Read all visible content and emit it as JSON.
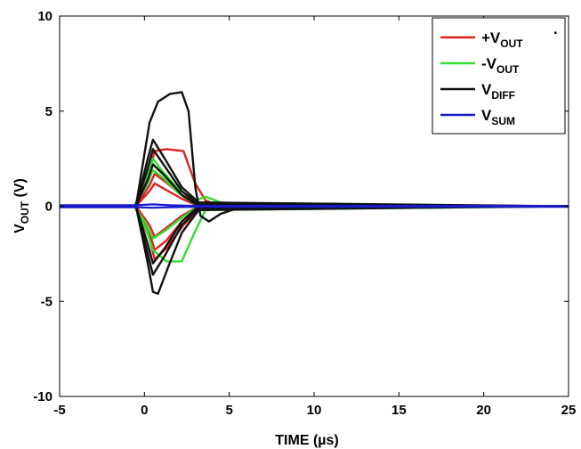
{
  "chart_data": {
    "type": "line",
    "xlabel": "TIME (µs)",
    "ylabel_main": "V",
    "ylabel_sub": "OUT",
    "ylabel_tail": " (V)",
    "xlim": [
      -5,
      25
    ],
    "ylim": [
      -10,
      10
    ],
    "x_ticks": [
      -5,
      0,
      5,
      10,
      15,
      20,
      25
    ],
    "y_ticks": [
      -10,
      -5,
      0,
      5,
      10
    ],
    "grid": false,
    "legend_position": "top-right",
    "series": [
      {
        "name": "+VOUT",
        "label_main": "+V",
        "label_sub": "OUT",
        "color": "#dd2222",
        "traces": [
          [
            [
              -5,
              0
            ],
            [
              -0.5,
              0
            ],
            [
              0.2,
              1.5
            ],
            [
              0.6,
              2.9
            ],
            [
              1.3,
              3.0
            ],
            [
              2.3,
              2.9
            ],
            [
              3.0,
              1.2
            ],
            [
              3.6,
              0.3
            ],
            [
              4.5,
              0
            ],
            [
              25,
              0
            ]
          ],
          [
            [
              -5,
              0
            ],
            [
              -0.5,
              0
            ],
            [
              0.3,
              1.1
            ],
            [
              0.6,
              1.7
            ],
            [
              1.2,
              1.3
            ],
            [
              2.2,
              0.6
            ],
            [
              3.2,
              0.1
            ],
            [
              25,
              0
            ]
          ],
          [
            [
              -5,
              0
            ],
            [
              -0.5,
              0
            ],
            [
              0.3,
              0.8
            ],
            [
              0.6,
              1.2
            ],
            [
              1.2,
              0.9
            ],
            [
              2.2,
              0.4
            ],
            [
              3.2,
              0
            ],
            [
              25,
              0
            ]
          ],
          [
            [
              -5,
              0
            ],
            [
              -0.5,
              0
            ],
            [
              0.3,
              -1.0
            ],
            [
              0.6,
              -1.6
            ],
            [
              1.2,
              -1.2
            ],
            [
              2.2,
              -0.5
            ],
            [
              3.2,
              0
            ],
            [
              25,
              0
            ]
          ],
          [
            [
              -5,
              0
            ],
            [
              -0.5,
              0
            ],
            [
              0.3,
              -1.4
            ],
            [
              0.6,
              -2.3
            ],
            [
              1.3,
              -1.8
            ],
            [
              2.2,
              -0.8
            ],
            [
              3.2,
              0
            ],
            [
              25,
              0
            ]
          ],
          [
            [
              -5,
              0
            ],
            [
              -0.5,
              0
            ],
            [
              0.3,
              -1.7
            ],
            [
              0.6,
              -2.8
            ],
            [
              1.3,
              -2.2
            ],
            [
              2.3,
              -1.0
            ],
            [
              3.3,
              -0.1
            ],
            [
              25,
              0
            ]
          ]
        ]
      },
      {
        "name": "-VOUT",
        "label_main": "-V",
        "label_sub": "OUT",
        "color": "#33dd33",
        "traces": [
          [
            [
              -5,
              0
            ],
            [
              -0.6,
              0
            ],
            [
              0.1,
              1.4
            ],
            [
              0.5,
              2.5
            ],
            [
              1.1,
              1.8
            ],
            [
              2.0,
              0.9
            ],
            [
              3.0,
              0.3
            ],
            [
              3.6,
              0.5
            ],
            [
              4.5,
              0.2
            ],
            [
              5.5,
              0
            ],
            [
              25,
              0
            ]
          ],
          [
            [
              -5,
              0
            ],
            [
              -0.6,
              0
            ],
            [
              0.1,
              1.0
            ],
            [
              0.5,
              1.9
            ],
            [
              1.1,
              1.5
            ],
            [
              2.0,
              0.7
            ],
            [
              3.0,
              0.1
            ],
            [
              25,
              0
            ]
          ],
          [
            [
              -5,
              0
            ],
            [
              -0.6,
              0
            ],
            [
              0.1,
              -1.2
            ],
            [
              0.5,
              -2.3
            ],
            [
              1.3,
              -2.9
            ],
            [
              2.2,
              -2.9
            ],
            [
              3.0,
              -1.3
            ],
            [
              3.6,
              -0.2
            ],
            [
              25,
              0
            ]
          ],
          [
            [
              -5,
              0
            ],
            [
              -0.6,
              0
            ],
            [
              0.1,
              -0.9
            ],
            [
              0.5,
              -1.7
            ],
            [
              1.2,
              -1.3
            ],
            [
              2.2,
              -0.6
            ],
            [
              3.2,
              0
            ],
            [
              25,
              0
            ]
          ]
        ]
      },
      {
        "name": "VDIFF",
        "label_main": "V",
        "label_sub": "DIFF",
        "color": "#111111",
        "traces": [
          [
            [
              -5,
              0
            ],
            [
              -0.5,
              0
            ],
            [
              0.3,
              4.4
            ],
            [
              0.8,
              5.5
            ],
            [
              1.5,
              5.9
            ],
            [
              2.2,
              6.0
            ],
            [
              2.6,
              5.0
            ],
            [
              3.0,
              1.0
            ],
            [
              3.3,
              -0.5
            ],
            [
              3.8,
              -0.8
            ],
            [
              4.5,
              -0.4
            ],
            [
              5.5,
              -0.1
            ],
            [
              6.5,
              0
            ],
            [
              25,
              0
            ]
          ],
          [
            [
              -5,
              0
            ],
            [
              -0.5,
              0
            ],
            [
              0.2,
              2.5
            ],
            [
              0.5,
              3.5
            ],
            [
              1.2,
              2.5
            ],
            [
              2.2,
              1.0
            ],
            [
              3.2,
              0.2
            ],
            [
              25,
              0
            ]
          ],
          [
            [
              -5,
              0
            ],
            [
              -0.5,
              0
            ],
            [
              0.2,
              2.0
            ],
            [
              0.5,
              3.0
            ],
            [
              1.2,
              2.1
            ],
            [
              2.2,
              0.8
            ],
            [
              3.2,
              0.1
            ],
            [
              25,
              0
            ]
          ],
          [
            [
              -5,
              0
            ],
            [
              -0.5,
              0
            ],
            [
              0.2,
              1.4
            ],
            [
              0.5,
              2.2
            ],
            [
              1.2,
              1.6
            ],
            [
              2.2,
              0.6
            ],
            [
              3.2,
              0
            ],
            [
              25,
              0
            ]
          ],
          [
            [
              -5,
              0
            ],
            [
              -0.5,
              0
            ],
            [
              0.2,
              -2.5
            ],
            [
              0.5,
              -3.6
            ],
            [
              1.2,
              -2.6
            ],
            [
              2.2,
              -1.0
            ],
            [
              3.2,
              -0.1
            ],
            [
              25,
              0
            ]
          ],
          [
            [
              -5,
              0
            ],
            [
              -0.5,
              0
            ],
            [
              0.2,
              -3.0
            ],
            [
              0.5,
              -4.5
            ],
            [
              0.8,
              -4.6
            ],
            [
              1.4,
              -3.2
            ],
            [
              2.2,
              -1.4
            ],
            [
              3.2,
              -0.2
            ],
            [
              25,
              0
            ]
          ],
          [
            [
              -5,
              0
            ],
            [
              -0.5,
              0
            ],
            [
              0.2,
              -2.0
            ],
            [
              0.5,
              -3.0
            ],
            [
              1.2,
              -2.2
            ],
            [
              2.2,
              -0.8
            ],
            [
              3.2,
              0
            ],
            [
              25,
              0
            ]
          ]
        ]
      },
      {
        "name": "VSUM",
        "label_main": "V",
        "label_sub": "SUM",
        "color": "#1a1acc",
        "traces": [
          [
            [
              -5,
              0.05
            ],
            [
              -0.5,
              0.05
            ],
            [
              0.5,
              0.1
            ],
            [
              1.5,
              0.05
            ],
            [
              3,
              0.02
            ],
            [
              25,
              0.02
            ]
          ],
          [
            [
              -5,
              -0.05
            ],
            [
              -0.5,
              -0.05
            ],
            [
              0.5,
              -0.08
            ],
            [
              1.5,
              -0.05
            ],
            [
              3,
              -0.03
            ],
            [
              25,
              -0.03
            ]
          ]
        ]
      }
    ]
  },
  "legend_stray_mark": "."
}
